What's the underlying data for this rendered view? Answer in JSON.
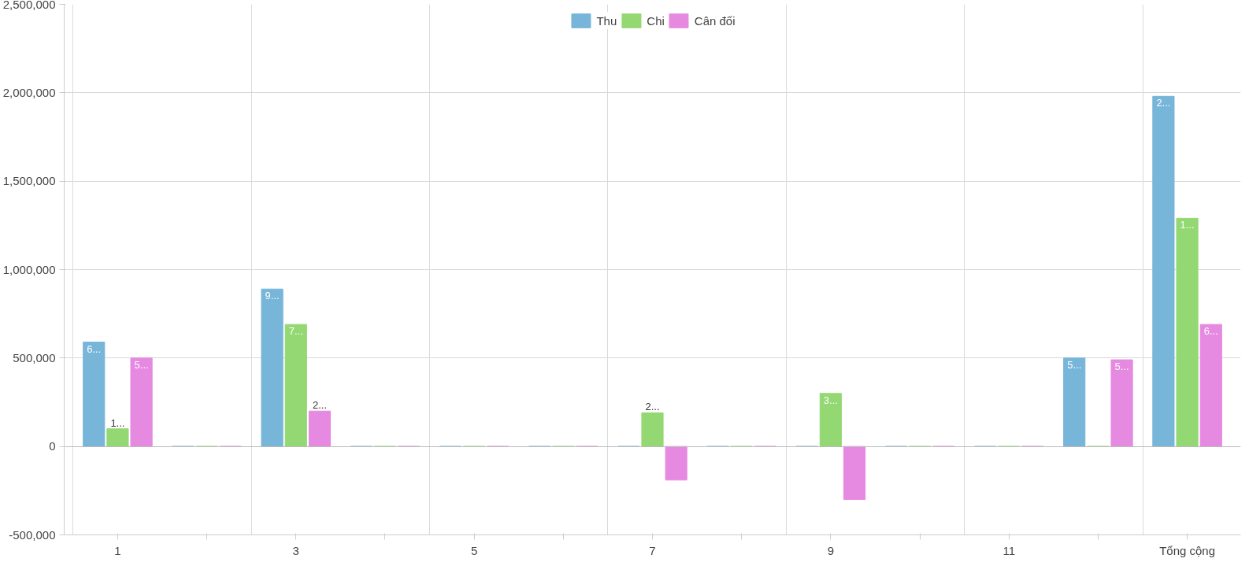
{
  "chart_data": {
    "type": "bar",
    "categories": [
      "1",
      null,
      "3",
      null,
      "5",
      null,
      "7",
      null,
      "9",
      null,
      "11",
      null,
      "Tổng cộng"
    ],
    "series": [
      {
        "name": "Thu",
        "color": "#77b5d9",
        "values": [
          590000,
          0,
          890000,
          0,
          0,
          0,
          0,
          0,
          0,
          0,
          0,
          500000,
          1980000
        ],
        "value_labels": [
          "6...",
          null,
          "9...",
          null,
          null,
          null,
          null,
          null,
          null,
          null,
          null,
          "5...",
          "2..."
        ]
      },
      {
        "name": "Chi",
        "color": "#93d873",
        "values": [
          100000,
          0,
          690000,
          0,
          0,
          0,
          190000,
          0,
          300000,
          0,
          0,
          0,
          1290000
        ],
        "value_labels": [
          "1...",
          null,
          "7...",
          null,
          null,
          null,
          "2...",
          null,
          "3...",
          null,
          null,
          null,
          "1..."
        ]
      },
      {
        "name": "Cân đối",
        "color": "#e58ae0",
        "values": [
          500000,
          0,
          200000,
          0,
          0,
          0,
          -190000,
          0,
          -300000,
          0,
          0,
          490000,
          690000
        ],
        "value_labels": [
          "5...",
          null,
          "2...",
          null,
          null,
          null,
          null,
          null,
          null,
          null,
          null,
          "5...",
          "6..."
        ]
      }
    ],
    "ylim": [
      -500000,
      2500000
    ],
    "yticks": [
      {
        "value": -500000,
        "label": "-500,000"
      },
      0,
      {
        "value": 500000,
        "label": "500,000"
      },
      {
        "value": 1000000,
        "label": "1,000,000"
      },
      {
        "value": 1500000,
        "label": "1,500,000"
      },
      {
        "value": 2000000,
        "label": "2,000,000"
      },
      {
        "value": 2500000,
        "label": "2,500,000"
      }
    ],
    "grid": true,
    "legend": "top"
  }
}
